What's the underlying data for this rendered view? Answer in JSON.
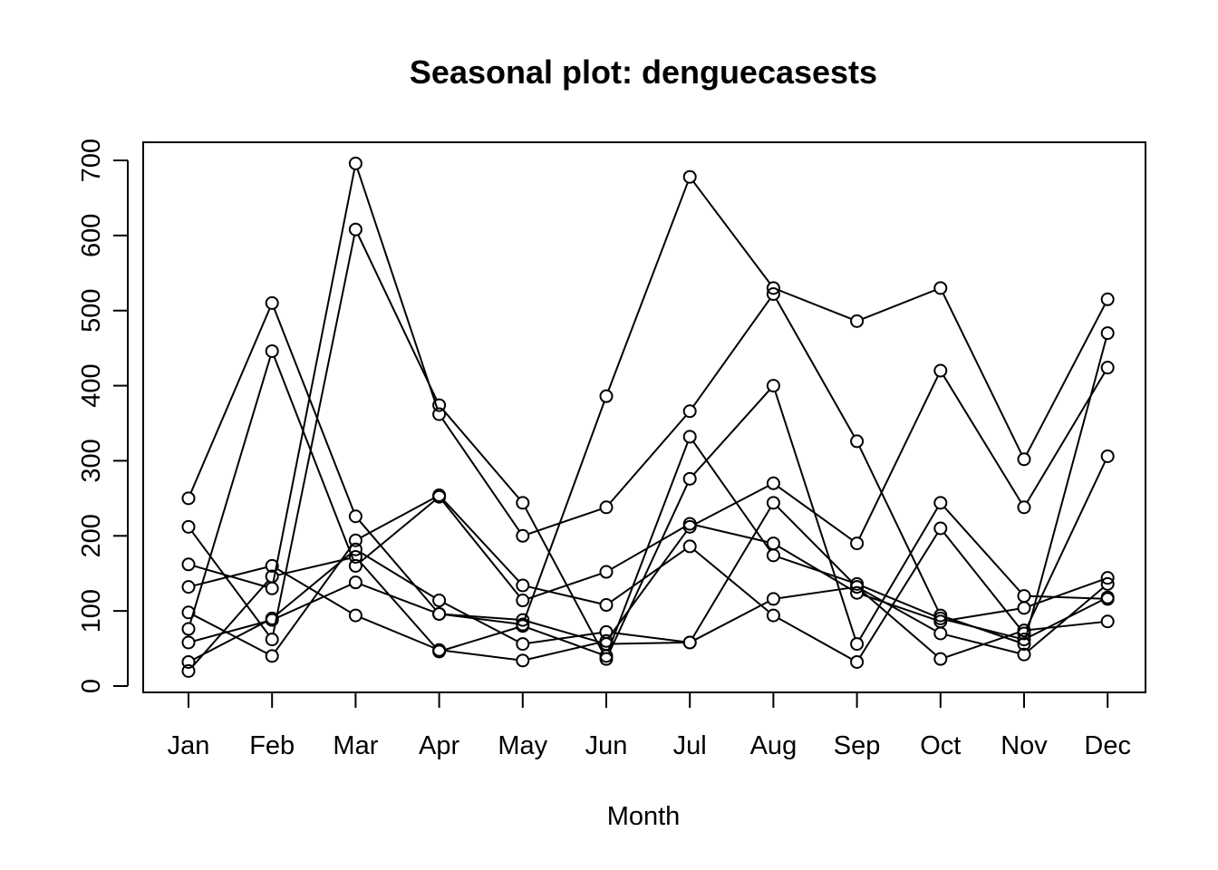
{
  "chart_data": {
    "type": "line",
    "title": "Seasonal plot: denguecasests",
    "xlabel": "Month",
    "ylabel": "",
    "categories": [
      "Jan",
      "Feb",
      "Mar",
      "Apr",
      "May",
      "Jun",
      "Jul",
      "Aug",
      "Sep",
      "Oct",
      "Nov",
      "Dec"
    ],
    "ylim": [
      0,
      700
    ],
    "yticks": [
      0,
      100,
      200,
      300,
      400,
      500,
      600,
      700
    ],
    "grid": false,
    "legend": "none",
    "marker": "open-circle",
    "line_color": "#000000",
    "series": [
      {
        "values": [
          250,
          510,
          226,
          96,
          82,
          386,
          678,
          530,
          486,
          530,
          302,
          515
        ]
      },
      {
        "values": [
          212,
          62,
          608,
          374,
          244,
          36,
          276,
          400,
          56,
          244,
          120,
          116
        ]
      },
      {
        "values": [
          162,
          130,
          696,
          362,
          200,
          238,
          366,
          522,
          326,
          94,
          56,
          470
        ]
      },
      {
        "values": [
          132,
          160,
          94,
          48,
          34,
          60,
          212,
          270,
          190,
          420,
          238,
          424
        ]
      },
      {
        "values": [
          98,
          40,
          194,
          254,
          134,
          108,
          186,
          94,
          32,
          210,
          70,
          306
        ]
      },
      {
        "values": [
          76,
          446,
          160,
          252,
          114,
          152,
          216,
          190,
          124,
          86,
          104,
          144
        ]
      },
      {
        "values": [
          58,
          88,
          138,
          96,
          88,
          56,
          58,
          116,
          132,
          36,
          74,
          86
        ]
      },
      {
        "values": [
          32,
          90,
          182,
          114,
          56,
          72,
          58,
          244,
          132,
          70,
          42,
          136
        ]
      },
      {
        "values": [
          20,
          146,
          172,
          46,
          80,
          40,
          332,
          174,
          136,
          90,
          62,
          118
        ]
      }
    ]
  }
}
